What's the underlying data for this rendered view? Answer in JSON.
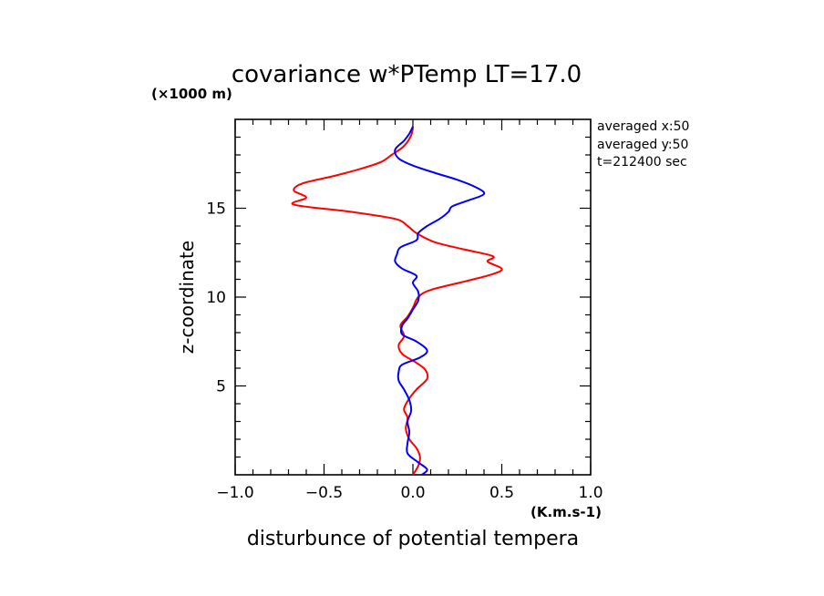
{
  "chart_data": {
    "type": "line",
    "title": "covariance w*PTemp LT=17.0",
    "y_unit_label": "(×1000 m)",
    "ylabel": "z-coordinate",
    "xlabel": "disturbunce of potential tempera",
    "x_unit_label": "(K.m.s-1)",
    "xlim": [
      -1.0,
      1.0
    ],
    "ylim": [
      0,
      20
    ],
    "x_ticks": [
      "-1.0",
      "-0.5",
      "0.0",
      "0.5",
      "1.0"
    ],
    "y_ticks": [
      "5",
      "10",
      "15"
    ],
    "annotations": [
      "averaged  x:50",
      "averaged  y:50",
      "t=212400 sec"
    ],
    "grid": false,
    "series": [
      {
        "color": "#ff0000",
        "points": [
          [
            0.0,
            0.0
          ],
          [
            0.03,
            0.5
          ],
          [
            0.04,
            1.0
          ],
          [
            0.02,
            1.5
          ],
          [
            -0.02,
            2.0
          ],
          [
            -0.04,
            2.6
          ],
          [
            -0.03,
            3.2
          ],
          [
            -0.05,
            3.7
          ],
          [
            -0.02,
            4.3
          ],
          [
            0.02,
            4.8
          ],
          [
            0.08,
            5.4
          ],
          [
            0.07,
            5.9
          ],
          [
            0.02,
            6.3
          ],
          [
            -0.06,
            6.8
          ],
          [
            -0.08,
            7.3
          ],
          [
            -0.05,
            7.8
          ],
          [
            -0.07,
            8.4
          ],
          [
            -0.03,
            8.9
          ],
          [
            0.0,
            9.4
          ],
          [
            0.03,
            10.0
          ],
          [
            0.1,
            10.4
          ],
          [
            0.3,
            10.9
          ],
          [
            0.45,
            11.3
          ],
          [
            0.5,
            11.6
          ],
          [
            0.42,
            12.0
          ],
          [
            0.45,
            12.3
          ],
          [
            0.28,
            12.7
          ],
          [
            0.12,
            13.1
          ],
          [
            0.02,
            13.6
          ],
          [
            -0.03,
            14.0
          ],
          [
            -0.1,
            14.4
          ],
          [
            -0.35,
            14.8
          ],
          [
            -0.67,
            15.2
          ],
          [
            -0.6,
            15.6
          ],
          [
            -0.67,
            16.0
          ],
          [
            -0.62,
            16.4
          ],
          [
            -0.45,
            16.8
          ],
          [
            -0.3,
            17.2
          ],
          [
            -0.18,
            17.6
          ],
          [
            -0.12,
            18.0
          ],
          [
            -0.05,
            18.5
          ],
          [
            -0.01,
            19.1
          ],
          [
            0.0,
            19.6
          ]
        ]
      },
      {
        "color": "#0000ff",
        "points": [
          [
            0.05,
            0.0
          ],
          [
            0.08,
            0.3
          ],
          [
            0.03,
            0.7
          ],
          [
            -0.03,
            1.2
          ],
          [
            -0.03,
            1.8
          ],
          [
            -0.02,
            2.4
          ],
          [
            -0.03,
            3.0
          ],
          [
            -0.01,
            3.6
          ],
          [
            -0.02,
            4.2
          ],
          [
            -0.05,
            4.8
          ],
          [
            -0.08,
            5.3
          ],
          [
            -0.08,
            5.8
          ],
          [
            -0.06,
            6.2
          ],
          [
            0.04,
            6.6
          ],
          [
            0.08,
            7.0
          ],
          [
            0.02,
            7.5
          ],
          [
            -0.06,
            7.9
          ],
          [
            -0.06,
            8.4
          ],
          [
            -0.03,
            8.8
          ],
          [
            0.0,
            9.3
          ],
          [
            0.03,
            9.8
          ],
          [
            0.03,
            10.3
          ],
          [
            0.0,
            10.8
          ],
          [
            0.02,
            11.2
          ],
          [
            -0.06,
            11.6
          ],
          [
            -0.1,
            12.0
          ],
          [
            -0.09,
            12.4
          ],
          [
            -0.07,
            12.8
          ],
          [
            0.02,
            13.2
          ],
          [
            0.03,
            13.6
          ],
          [
            0.08,
            14.0
          ],
          [
            0.15,
            14.4
          ],
          [
            0.2,
            14.8
          ],
          [
            0.22,
            15.1
          ],
          [
            0.3,
            15.4
          ],
          [
            0.4,
            15.8
          ],
          [
            0.35,
            16.2
          ],
          [
            0.25,
            16.6
          ],
          [
            0.12,
            17.0
          ],
          [
            0.0,
            17.4
          ],
          [
            -0.08,
            17.8
          ],
          [
            -0.1,
            18.3
          ],
          [
            -0.05,
            18.8
          ],
          [
            -0.02,
            19.2
          ],
          [
            0.0,
            19.6
          ]
        ]
      }
    ]
  }
}
